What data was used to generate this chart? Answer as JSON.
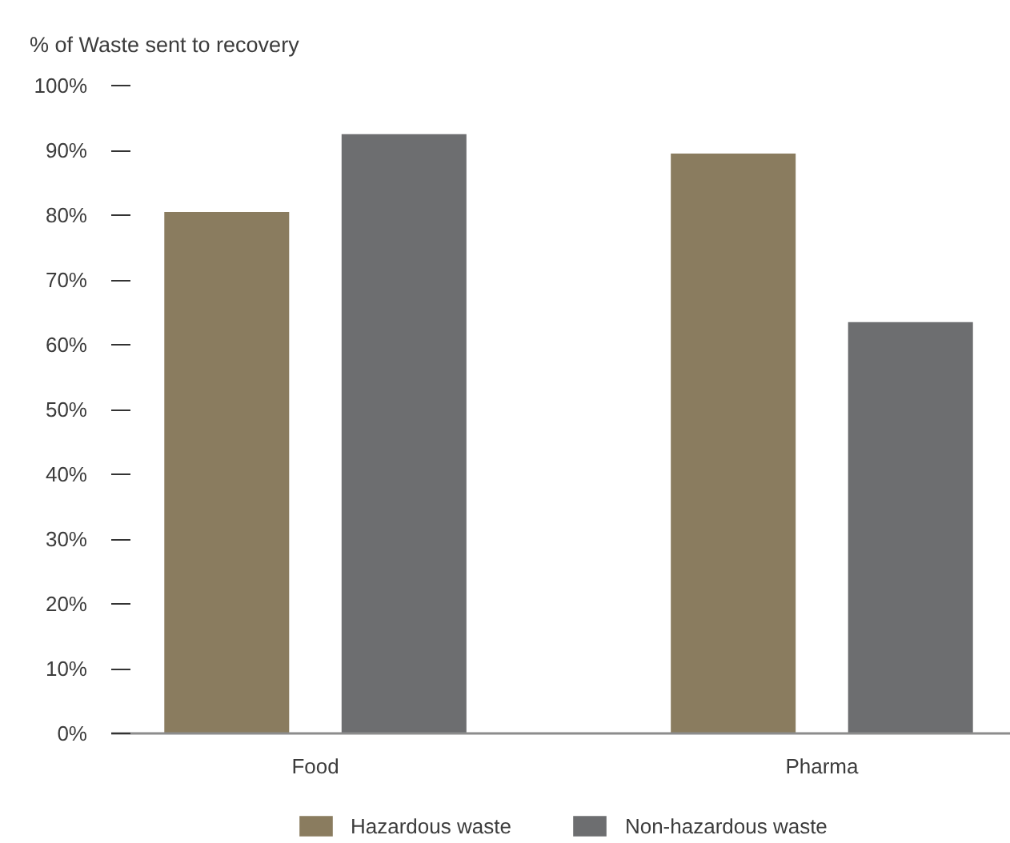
{
  "chart_data": {
    "type": "bar",
    "ylabel": "% of Waste sent to recovery",
    "categories": [
      "Food",
      "Pharma"
    ],
    "series": [
      {
        "name": "Hazardous waste",
        "color": "#8a7c5f",
        "values": [
          80.5,
          89.5
        ]
      },
      {
        "name": "Non-hazardous waste",
        "color": "#6d6e70",
        "values": [
          92.5,
          63.5
        ]
      }
    ],
    "ylim": [
      0,
      100
    ],
    "yticks": [
      {
        "value": 0,
        "label": "0%"
      },
      {
        "value": 10,
        "label": "10%"
      },
      {
        "value": 20,
        "label": "20%"
      },
      {
        "value": 30,
        "label": "30%"
      },
      {
        "value": 40,
        "label": "40%"
      },
      {
        "value": 50,
        "label": "50%"
      },
      {
        "value": 60,
        "label": "60%"
      },
      {
        "value": 70,
        "label": "70%"
      },
      {
        "value": 80,
        "label": "80%"
      },
      {
        "value": 90,
        "label": "90%"
      },
      {
        "value": 100,
        "label": "100%"
      }
    ],
    "grid": false,
    "legend": "bottom"
  }
}
